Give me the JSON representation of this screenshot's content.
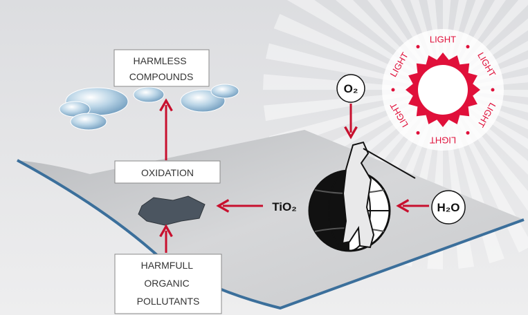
{
  "harmless_box": {
    "lines": [
      "HARMLESS",
      "COMPOUNDS"
    ]
  },
  "oxidation_box": {
    "label": "OXIDATION"
  },
  "pollutants_box": {
    "lines": [
      "HARMFULL",
      "ORGANIC",
      "POLLUTANTS"
    ]
  },
  "oxygen": {
    "label": "O₂"
  },
  "catalyst": {
    "label": "TiO₂"
  },
  "water": {
    "label": "H₂O"
  },
  "light_ring": {
    "labels": [
      "LIGHT",
      "LIGHT",
      "LIGHT",
      "LIGHT",
      "LIGHT",
      "LIGHT"
    ]
  }
}
